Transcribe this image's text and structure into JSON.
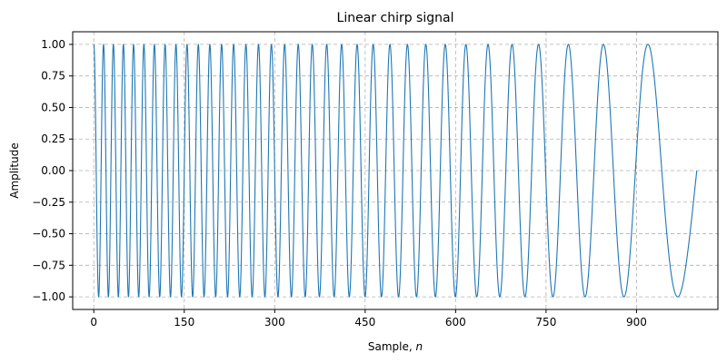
{
  "chart_data": {
    "type": "line",
    "title": "Linear chirp signal",
    "xlabel": "Sample, ",
    "xlabel_var": "n",
    "ylabel": "Amplitude",
    "xlim": [
      -35,
      1035
    ],
    "ylim": [
      -1.1,
      1.1
    ],
    "xticks": [
      0,
      150,
      300,
      450,
      600,
      750,
      900
    ],
    "xtick_labels": [
      "0",
      "150",
      "300",
      "450",
      "600",
      "750",
      "900"
    ],
    "yticks": [
      -1.0,
      -0.75,
      -0.5,
      -0.25,
      0.0,
      0.25,
      0.5,
      0.75,
      1.0
    ],
    "ytick_labels": [
      "−1.00",
      "−0.75",
      "−0.50",
      "−0.25",
      "0.00",
      "0.25",
      "0.50",
      "0.75",
      "1.00"
    ],
    "grid": true,
    "series": [
      {
        "color": "#1f77b4",
        "n_samples": 1001,
        "x_start": 0,
        "x_end": 1000,
        "formula": "cos(2*pi*(f0*n - 0.5*k*n^2))",
        "f0": 0.0625,
        "k": 5.55e-05
      }
    ]
  }
}
